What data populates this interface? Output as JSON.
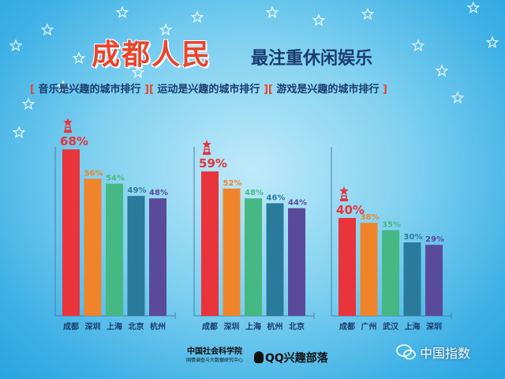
{
  "title": "成都人民",
  "title_sub": "最注重休闲娱乐",
  "subtitles": [
    "音乐是兴趣的城市排行",
    "运动是兴趣的城市排行",
    "游戏是兴趣的城市排行"
  ],
  "bar_colors": [
    "#e8343a",
    "#f0842b",
    "#45b883",
    "#2a7b9b",
    "#5a4b9a"
  ],
  "label_colors": [
    "#e8343a",
    "#f0842b",
    "#45b883",
    "#2a7b9b",
    "#5a4b9a"
  ],
  "chart_data": [
    {
      "type": "bar",
      "categories": [
        "成都",
        "深圳",
        "上海",
        "北京",
        "杭州"
      ],
      "values": [
        68,
        56,
        54,
        49,
        48
      ],
      "ylim": [
        0,
        80
      ]
    },
    {
      "type": "bar",
      "categories": [
        "成都",
        "深圳",
        "上海",
        "杭州",
        "北京"
      ],
      "values": [
        59,
        52,
        48,
        46,
        44
      ],
      "ylim": [
        0,
        80
      ]
    },
    {
      "type": "bar",
      "categories": [
        "成都",
        "广州",
        "武汉",
        "上海",
        "深圳"
      ],
      "values": [
        40,
        38,
        35,
        30,
        29
      ],
      "ylim": [
        0,
        80
      ]
    }
  ],
  "footer": {
    "org": "中国社会科学院",
    "org_sub": "国情调查与大数据研究中心",
    "qq": "QQ兴趣部落"
  },
  "watermark": "中国指数"
}
